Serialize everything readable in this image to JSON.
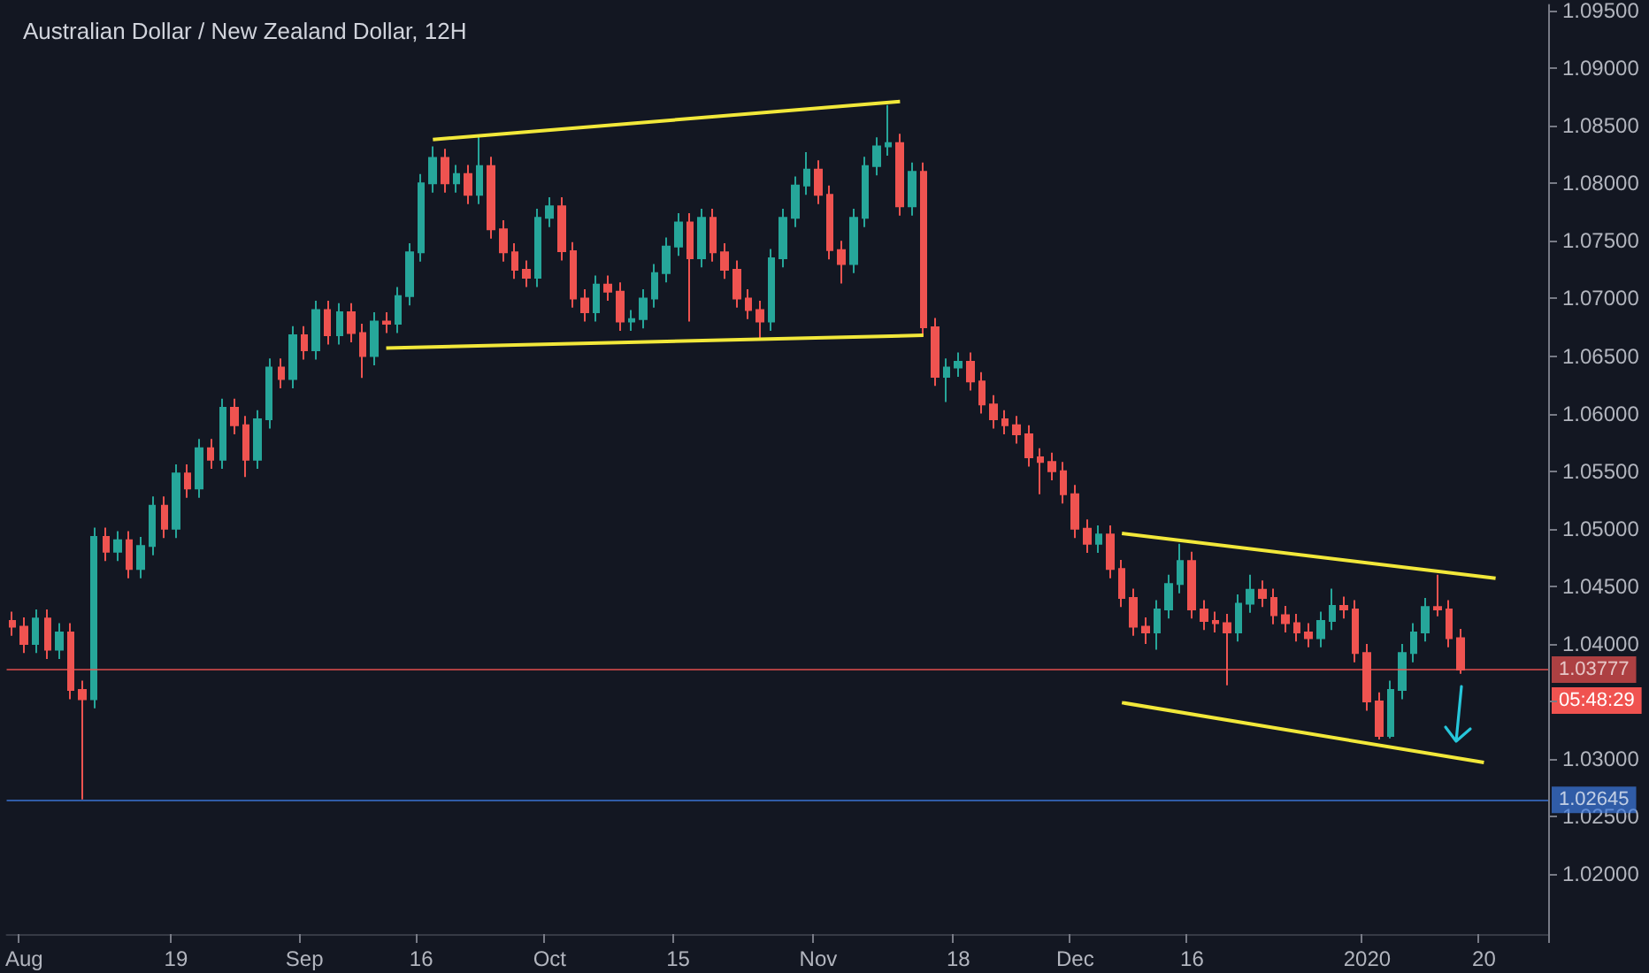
{
  "chart_data": {
    "type": "candlestick",
    "title": "Australian Dollar / New Zealand Dollar, 12H",
    "categories": [
      null,
      "Aug",
      null,
      null,
      null,
      null,
      null,
      null,
      null,
      null,
      null,
      null,
      null,
      null,
      "19",
      null,
      null,
      null,
      null,
      null,
      null,
      null,
      null,
      null,
      null,
      "Sep",
      null,
      null,
      null,
      null,
      null,
      null,
      null,
      null,
      null,
      "16",
      null,
      null,
      null,
      null,
      null,
      null,
      null,
      null,
      null,
      null,
      "Oct",
      null,
      null,
      null,
      null,
      null,
      null,
      null,
      null,
      null,
      null,
      "15",
      null,
      null,
      null,
      null,
      null,
      null,
      null,
      null,
      null,
      null,
      null,
      "Nov",
      null,
      null,
      null,
      null,
      null,
      null,
      null,
      null,
      null,
      null,
      null,
      "18",
      null,
      null,
      null,
      null,
      null,
      null,
      null,
      null,
      null,
      "Dec",
      null,
      null,
      null,
      null,
      null,
      null,
      null,
      null,
      null,
      "16",
      null,
      null,
      null,
      null,
      null,
      null,
      null,
      null,
      null,
      null,
      null,
      null,
      null,
      null,
      "2020",
      null,
      null,
      null,
      null,
      null,
      null,
      null,
      null,
      null,
      "20",
      null,
      null,
      null,
      null,
      null
    ],
    "ohlc": [
      [
        1.042,
        1.0428,
        1.0407,
        1.0415
      ],
      [
        1.0415,
        1.0423,
        1.0392,
        1.04
      ],
      [
        1.04,
        1.043,
        1.0392,
        1.0422
      ],
      [
        1.0422,
        1.043,
        1.0387,
        1.0395
      ],
      [
        1.0395,
        1.0418,
        1.0387,
        1.041
      ],
      [
        1.041,
        1.0418,
        1.0352,
        1.036
      ],
      [
        1.036,
        1.0368,
        1.0265,
        1.0352
      ],
      [
        1.0352,
        1.0501,
        1.0344,
        1.0493
      ],
      [
        1.0493,
        1.0501,
        1.0472,
        1.048
      ],
      [
        1.048,
        1.0498,
        1.0472,
        1.049
      ],
      [
        1.049,
        1.0498,
        1.0457,
        1.0465
      ],
      [
        1.0465,
        1.0493,
        1.0457,
        1.0485
      ],
      [
        1.0485,
        1.0528,
        1.0477,
        1.052
      ],
      [
        1.052,
        1.0528,
        1.0492,
        1.05
      ],
      [
        1.05,
        1.0556,
        1.0492,
        1.0548
      ],
      [
        1.0548,
        1.0556,
        1.0527,
        1.0535
      ],
      [
        1.0535,
        1.0578,
        1.0527,
        1.057
      ],
      [
        1.057,
        1.0578,
        1.0552,
        1.056
      ],
      [
        1.056,
        1.0613,
        1.0552,
        1.0605
      ],
      [
        1.0605,
        1.0613,
        1.0582,
        1.059
      ],
      [
        1.059,
        1.0598,
        1.0545,
        1.056
      ],
      [
        1.056,
        1.0603,
        1.0552,
        1.0595
      ],
      [
        1.0595,
        1.0648,
        1.0587,
        1.064
      ],
      [
        1.064,
        1.0648,
        1.0622,
        1.063
      ],
      [
        1.063,
        1.0676,
        1.0622,
        1.0668
      ],
      [
        1.0668,
        1.0676,
        1.0647,
        1.0655
      ],
      [
        1.0655,
        1.0698,
        1.0647,
        1.069
      ],
      [
        1.069,
        1.0698,
        1.066,
        1.0668
      ],
      [
        1.0668,
        1.0696,
        1.066,
        1.0688
      ],
      [
        1.0688,
        1.0696,
        1.0662,
        1.067
      ],
      [
        1.067,
        1.0678,
        1.0631,
        1.065
      ],
      [
        1.065,
        1.0688,
        1.0642,
        1.068
      ],
      [
        1.068,
        1.0688,
        1.067,
        1.0678
      ],
      [
        1.0678,
        1.071,
        1.067,
        1.0702
      ],
      [
        1.0702,
        1.0748,
        1.0694,
        1.074
      ],
      [
        1.074,
        1.0808,
        1.0732,
        1.08
      ],
      [
        1.08,
        1.0832,
        1.0792,
        1.0822
      ],
      [
        1.0822,
        1.083,
        1.0792,
        1.08
      ],
      [
        1.08,
        1.0816,
        1.0792,
        1.0808
      ],
      [
        1.0808,
        1.0816,
        1.0782,
        1.079
      ],
      [
        1.079,
        1.0842,
        1.0782,
        1.0815
      ],
      [
        1.0815,
        1.0823,
        1.0752,
        1.076
      ],
      [
        1.076,
        1.0768,
        1.0732,
        1.074
      ],
      [
        1.074,
        1.0748,
        1.0717,
        1.0725
      ],
      [
        1.0725,
        1.0733,
        1.071,
        1.0718
      ],
      [
        1.0718,
        1.0778,
        1.071,
        1.077
      ],
      [
        1.077,
        1.0788,
        1.0762,
        1.078
      ],
      [
        1.078,
        1.0788,
        1.0733,
        1.0741
      ],
      [
        1.0741,
        1.0749,
        1.0692,
        1.07
      ],
      [
        1.07,
        1.0708,
        1.068,
        1.0688
      ],
      [
        1.0688,
        1.072,
        1.068,
        1.0712
      ],
      [
        1.0712,
        1.072,
        1.0698,
        1.0706
      ],
      [
        1.0706,
        1.0714,
        1.0672,
        1.068
      ],
      [
        1.068,
        1.069,
        1.0672,
        1.0682
      ],
      [
        1.0682,
        1.0708,
        1.0674,
        1.07
      ],
      [
        1.07,
        1.073,
        1.0692,
        1.0722
      ],
      [
        1.0722,
        1.0753,
        1.0714,
        1.0745
      ],
      [
        1.0745,
        1.0774,
        1.0737,
        1.0766
      ],
      [
        1.0766,
        1.0774,
        1.068,
        1.0735
      ],
      [
        1.0735,
        1.0778,
        1.0727,
        1.077
      ],
      [
        1.077,
        1.0778,
        1.0732,
        1.074
      ],
      [
        1.074,
        1.0748,
        1.0717,
        1.0725
      ],
      [
        1.0725,
        1.0733,
        1.0692,
        1.07
      ],
      [
        1.07,
        1.0708,
        1.0682,
        1.069
      ],
      [
        1.069,
        1.0698,
        1.0665,
        1.068
      ],
      [
        1.068,
        1.0743,
        1.0672,
        1.0735
      ],
      [
        1.0735,
        1.0778,
        1.0727,
        1.077
      ],
      [
        1.077,
        1.0806,
        1.0762,
        1.0798
      ],
      [
        1.0798,
        1.0827,
        1.079,
        1.0812
      ],
      [
        1.0812,
        1.082,
        1.0782,
        1.079
      ],
      [
        1.079,
        1.0798,
        1.0734,
        1.0742
      ],
      [
        1.0742,
        1.075,
        1.0713,
        1.073
      ],
      [
        1.073,
        1.0778,
        1.0722,
        1.077
      ],
      [
        1.077,
        1.0823,
        1.0762,
        1.0815
      ],
      [
        1.0815,
        1.084,
        1.0807,
        1.0832
      ],
      [
        1.0832,
        1.0868,
        1.0824,
        1.0835
      ],
      [
        1.0835,
        1.0843,
        1.0772,
        1.078
      ],
      [
        1.078,
        1.0818,
        1.0772,
        1.081
      ],
      [
        1.081,
        1.0818,
        1.0667,
        1.0675
      ],
      [
        1.0675,
        1.0683,
        1.0624,
        1.0632
      ],
      [
        1.0632,
        1.0648,
        1.061,
        1.064
      ],
      [
        1.064,
        1.0653,
        1.0632,
        1.0645
      ],
      [
        1.0645,
        1.0653,
        1.062,
        1.0628
      ],
      [
        1.0628,
        1.0636,
        1.06,
        1.0608
      ],
      [
        1.0608,
        1.0616,
        1.0587,
        1.0595
      ],
      [
        1.0595,
        1.0603,
        1.0582,
        1.059
      ],
      [
        1.059,
        1.0598,
        1.0574,
        1.0582
      ],
      [
        1.0582,
        1.059,
        1.0554,
        1.0562
      ],
      [
        1.0562,
        1.057,
        1.053,
        1.0558
      ],
      [
        1.0558,
        1.0566,
        1.0542,
        1.055
      ],
      [
        1.055,
        1.0558,
        1.0522,
        1.053
      ],
      [
        1.053,
        1.0538,
        1.0492,
        1.05
      ],
      [
        1.05,
        1.0508,
        1.0479,
        1.0487
      ],
      [
        1.0487,
        1.0503,
        1.0479,
        1.0495
      ],
      [
        1.0495,
        1.0503,
        1.0457,
        1.0465
      ],
      [
        1.0465,
        1.0473,
        1.0432,
        1.044
      ],
      [
        1.044,
        1.0448,
        1.0407,
        1.0415
      ],
      [
        1.0415,
        1.0423,
        1.04,
        1.041
      ],
      [
        1.041,
        1.0438,
        1.0395,
        1.043
      ],
      [
        1.043,
        1.046,
        1.0422,
        1.0452
      ],
      [
        1.0452,
        1.0487,
        1.0444,
        1.0472
      ],
      [
        1.0472,
        1.048,
        1.0422,
        1.043
      ],
      [
        1.043,
        1.0438,
        1.0412,
        1.042
      ],
      [
        1.042,
        1.0428,
        1.041,
        1.0418
      ],
      [
        1.0418,
        1.0426,
        1.0364,
        1.041
      ],
      [
        1.041,
        1.0443,
        1.0402,
        1.0435
      ],
      [
        1.0435,
        1.046,
        1.0427,
        1.0447
      ],
      [
        1.0447,
        1.0455,
        1.0432,
        1.044
      ],
      [
        1.044,
        1.0448,
        1.0417,
        1.0425
      ],
      [
        1.0425,
        1.0433,
        1.041,
        1.0418
      ],
      [
        1.0418,
        1.0426,
        1.0402,
        1.041
      ],
      [
        1.041,
        1.0418,
        1.0397,
        1.0405
      ],
      [
        1.0405,
        1.0428,
        1.0397,
        1.042
      ],
      [
        1.042,
        1.0448,
        1.0412,
        1.0433
      ],
      [
        1.0433,
        1.0441,
        1.0422,
        1.043
      ],
      [
        1.043,
        1.0438,
        1.0384,
        1.0392
      ],
      [
        1.0392,
        1.04,
        1.0342,
        1.035
      ],
      [
        1.035,
        1.0358,
        1.0317,
        1.032
      ],
      [
        1.032,
        1.0368,
        1.0318,
        1.036
      ],
      [
        1.036,
        1.04,
        1.0352,
        1.0392
      ],
      [
        1.0392,
        1.0418,
        1.0384,
        1.041
      ],
      [
        1.041,
        1.044,
        1.0402,
        1.0432
      ],
      [
        1.0432,
        1.046,
        1.0424,
        1.043
      ],
      [
        1.043,
        1.0438,
        1.0397,
        1.0405
      ],
      [
        1.0405,
        1.0413,
        1.0374,
        1.03777
      ],
      null,
      null,
      null,
      null,
      null,
      null,
      null
    ],
    "series": [
      {
        "type": "line",
        "color": "#f2e83a",
        "values": [
          null,
          null,
          null,
          null,
          null,
          null,
          null,
          null,
          null,
          null,
          null,
          null,
          null,
          null,
          null,
          null,
          null,
          null,
          null,
          null,
          null,
          null,
          null,
          null,
          null,
          null,
          null,
          null,
          null,
          null,
          null,
          null,
          null,
          null,
          null,
          null,
          1.0838,
          null,
          null,
          null,
          null,
          null,
          null,
          null,
          null,
          null,
          null,
          null,
          null,
          null,
          null,
          null,
          null,
          null,
          null,
          null,
          null,
          null,
          null,
          null,
          null,
          null,
          null,
          null,
          null,
          null,
          null,
          null,
          null,
          null,
          null,
          null,
          null,
          null,
          null,
          null,
          1.0871,
          null,
          null,
          null,
          null,
          null,
          null,
          null,
          null,
          null,
          null,
          null,
          null,
          null,
          null,
          null,
          null,
          null,
          null,
          null,
          null,
          null,
          null,
          null,
          null,
          null,
          null,
          null,
          null,
          null,
          null,
          null,
          null,
          null,
          null,
          null,
          null,
          null,
          null,
          null,
          null,
          null,
          null,
          null,
          null,
          null,
          null,
          null,
          null,
          null,
          null,
          null,
          null,
          null,
          null,
          null
        ]
      },
      {
        "type": "line",
        "color": "#f2e83a",
        "values": [
          null,
          null,
          null,
          null,
          null,
          null,
          null,
          null,
          null,
          null,
          null,
          null,
          null,
          null,
          null,
          null,
          null,
          null,
          null,
          null,
          null,
          null,
          null,
          null,
          null,
          null,
          null,
          null,
          null,
          null,
          null,
          null,
          1.0657,
          null,
          null,
          null,
          null,
          null,
          null,
          null,
          null,
          null,
          null,
          null,
          null,
          null,
          null,
          null,
          null,
          null,
          null,
          null,
          null,
          null,
          null,
          null,
          null,
          null,
          null,
          null,
          null,
          null,
          null,
          null,
          null,
          null,
          null,
          null,
          null,
          null,
          null,
          null,
          null,
          null,
          null,
          null,
          null,
          null,
          1.0668,
          null,
          null,
          null,
          null,
          null,
          null,
          null,
          null,
          null,
          null,
          null,
          null,
          null,
          null,
          null,
          null,
          null,
          null,
          null,
          null,
          null,
          null,
          null,
          null,
          null,
          null,
          null,
          null,
          null,
          null,
          null,
          null,
          null,
          null,
          null,
          null,
          null,
          null,
          null,
          null,
          null,
          null,
          null,
          null,
          null,
          null,
          null,
          null,
          null,
          null,
          null,
          null,
          null
        ]
      },
      {
        "type": "line",
        "color": "#f2e83a",
        "values": [
          null,
          null,
          null,
          null,
          null,
          null,
          null,
          null,
          null,
          null,
          null,
          null,
          null,
          null,
          null,
          null,
          null,
          null,
          null,
          null,
          null,
          null,
          null,
          null,
          null,
          null,
          null,
          null,
          null,
          null,
          null,
          null,
          null,
          null,
          null,
          null,
          null,
          null,
          null,
          null,
          null,
          null,
          null,
          null,
          null,
          null,
          null,
          null,
          null,
          null,
          null,
          null,
          null,
          null,
          null,
          null,
          null,
          null,
          null,
          null,
          null,
          null,
          null,
          null,
          null,
          null,
          null,
          null,
          null,
          null,
          null,
          null,
          null,
          null,
          null,
          null,
          null,
          null,
          null,
          null,
          null,
          null,
          null,
          null,
          null,
          null,
          null,
          null,
          null,
          null,
          null,
          null,
          null,
          null,
          null,
          1.0496,
          null,
          null,
          null,
          null,
          null,
          null,
          null,
          null,
          null,
          null,
          null,
          null,
          null,
          null,
          null,
          null,
          null,
          null,
          null,
          null,
          null,
          null,
          null,
          null,
          null,
          null,
          null,
          null,
          null,
          null,
          null,
          1.0457,
          null,
          null,
          null,
          null
        ]
      },
      {
        "type": "line",
        "color": "#f2e83a",
        "values": [
          null,
          null,
          null,
          null,
          null,
          null,
          null,
          null,
          null,
          null,
          null,
          null,
          null,
          null,
          null,
          null,
          null,
          null,
          null,
          null,
          null,
          null,
          null,
          null,
          null,
          null,
          null,
          null,
          null,
          null,
          null,
          null,
          null,
          null,
          null,
          null,
          null,
          null,
          null,
          null,
          null,
          null,
          null,
          null,
          null,
          null,
          null,
          null,
          null,
          null,
          null,
          null,
          null,
          null,
          null,
          null,
          null,
          null,
          null,
          null,
          null,
          null,
          null,
          null,
          null,
          null,
          null,
          null,
          null,
          null,
          null,
          null,
          null,
          null,
          null,
          null,
          null,
          null,
          null,
          null,
          null,
          null,
          null,
          null,
          null,
          null,
          null,
          null,
          null,
          null,
          null,
          null,
          null,
          null,
          null,
          1.0349,
          null,
          null,
          null,
          null,
          null,
          null,
          null,
          null,
          null,
          null,
          null,
          null,
          null,
          null,
          null,
          null,
          null,
          null,
          null,
          null,
          null,
          null,
          null,
          null,
          null,
          null,
          null,
          null,
          null,
          null,
          1.0297,
          null,
          null,
          null,
          null,
          null
        ]
      }
    ],
    "ref_lines": [
      {
        "axis": "y",
        "value": 1.03777,
        "label": "1.03777",
        "color": "#f05350"
      },
      {
        "axis": "y",
        "value": 1.02645,
        "label": "1.02645",
        "color": "#3d7be0"
      }
    ],
    "annotations": [
      "05:48:29"
    ],
    "ylim": [
      1.0148,
      1.0955
    ],
    "yticks": [
      {
        "value": 1.02,
        "label": "1.02000"
      },
      {
        "value": 1.025,
        "label": "1.02500"
      },
      {
        "value": 1.03,
        "label": "1.03000"
      },
      {
        "value": 1.035,
        "label": null
      },
      {
        "value": 1.04,
        "label": "1.04000"
      },
      {
        "value": 1.045,
        "label": "1.04500"
      },
      {
        "value": 1.05,
        "label": "1.05000"
      },
      {
        "value": 1.055,
        "label": "1.05500"
      },
      {
        "value": 1.06,
        "label": "1.06000"
      },
      {
        "value": 1.065,
        "label": "1.06500"
      },
      {
        "value": 1.07,
        "label": "1.07000"
      },
      {
        "value": 1.075,
        "label": "1.07500"
      },
      {
        "value": 1.08,
        "label": "1.08000"
      },
      {
        "value": 1.085,
        "label": "1.08500"
      },
      {
        "value": 1.09,
        "label": "1.09000"
      },
      {
        "value": 1.095,
        "label": "1.09500"
      }
    ]
  }
}
